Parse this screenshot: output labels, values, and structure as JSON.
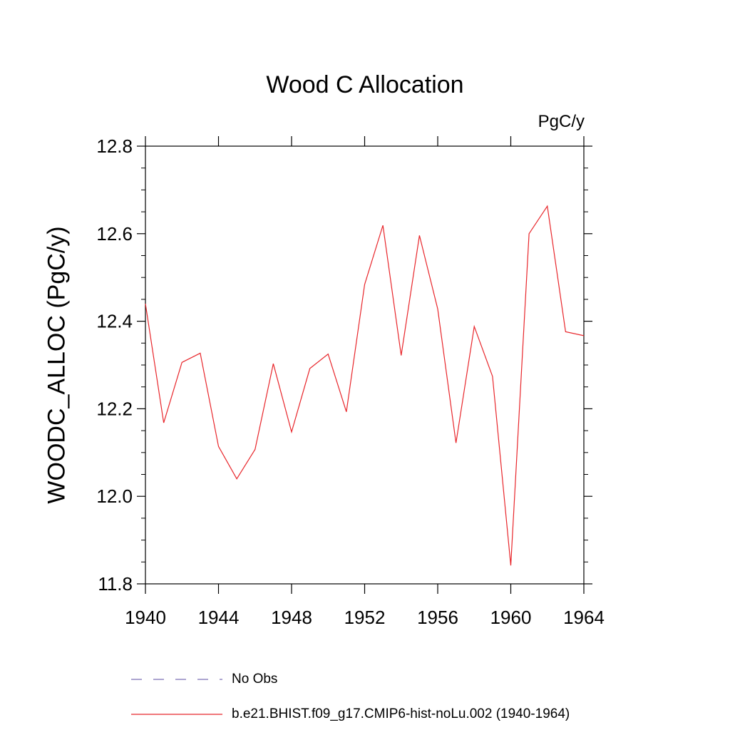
{
  "chart_data": {
    "type": "line",
    "title": "Wood C Allocation",
    "units": "PgC/y",
    "ylabel": "WOODC_ALLOC  (PgC/y)",
    "xlabel": "",
    "xlim": [
      1940,
      1964
    ],
    "ylim": [
      11.8,
      12.8
    ],
    "x_ticks": [
      1940,
      1944,
      1948,
      1952,
      1956,
      1960,
      1964
    ],
    "y_ticks": [
      "11.8",
      "12.0",
      "12.2",
      "12.4",
      "12.6",
      "12.8"
    ],
    "grid": false,
    "legend_position": "bottom",
    "series": [
      {
        "name": "b.e21.BHIST.f09_g17.CMIP6-hist-noLu.002 (1940-1964)",
        "color": "#e8262b",
        "style": "solid",
        "x": [
          1940,
          1941,
          1942,
          1943,
          1944,
          1945,
          1946,
          1947,
          1948,
          1949,
          1950,
          1951,
          1952,
          1953,
          1954,
          1955,
          1956,
          1957,
          1958,
          1959,
          1960,
          1961,
          1962,
          1963,
          1964
        ],
        "values": [
          12.44,
          12.168,
          12.306,
          12.327,
          12.114,
          12.04,
          12.107,
          12.303,
          12.147,
          12.292,
          12.325,
          12.193,
          12.484,
          12.619,
          12.322,
          12.596,
          12.428,
          12.122,
          12.388,
          12.274,
          11.842,
          12.6,
          12.663,
          12.376,
          12.367
        ]
      }
    ],
    "legend": [
      {
        "label": "No Obs",
        "color": "#7b6fb4",
        "style": "dashed"
      },
      {
        "label": "b.e21.BHIST.f09_g17.CMIP6-hist-noLu.002 (1940-1964)",
        "color": "#e8262b",
        "style": "solid"
      }
    ]
  }
}
